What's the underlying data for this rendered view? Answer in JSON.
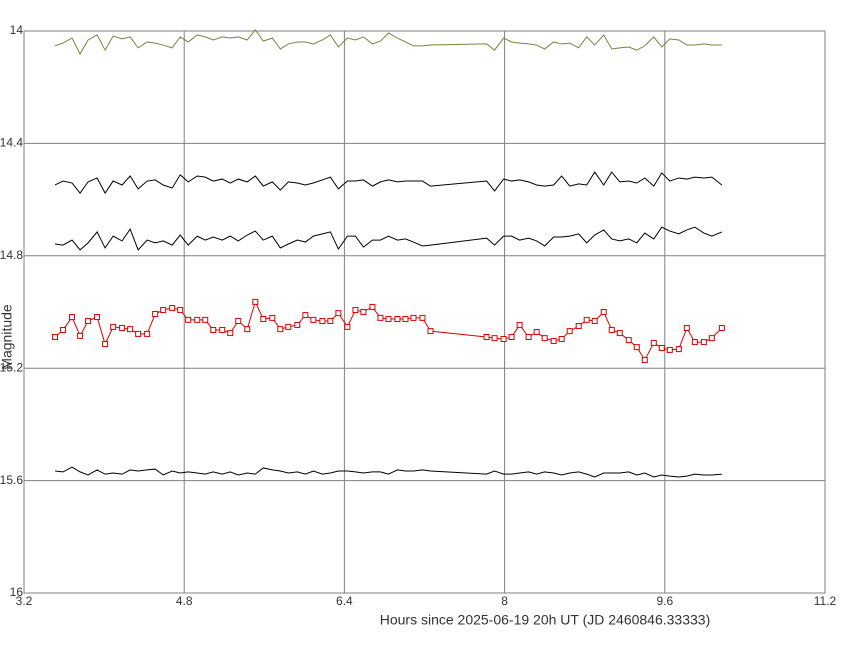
{
  "chart_data": {
    "type": "line",
    "xlabel": "Hours since 2025-06-19 20h UT (JD 2460846.33333)",
    "ylabel": "Magnitude",
    "xlim": [
      3.2,
      11.2
    ],
    "xticks": [
      3.2,
      4.8,
      6.4,
      8,
      9.6,
      11.2
    ],
    "ylim": [
      14,
      16
    ],
    "yticks": [
      14,
      14.4,
      14.8,
      15.2,
      15.6,
      16
    ],
    "invert_y": true,
    "grid": true,
    "x": [
      3.51,
      3.59,
      3.68,
      3.76,
      3.84,
      3.93,
      4.01,
      4.09,
      4.18,
      4.26,
      4.34,
      4.43,
      4.51,
      4.59,
      4.68,
      4.76,
      4.84,
      4.93,
      5.01,
      5.09,
      5.18,
      5.26,
      5.34,
      5.43,
      5.51,
      5.59,
      5.68,
      5.76,
      5.84,
      5.93,
      6.01,
      6.09,
      6.18,
      6.26,
      6.34,
      6.43,
      6.51,
      6.59,
      6.68,
      6.76,
      6.84,
      6.93,
      7.01,
      7.09,
      7.18,
      7.26,
      7.82,
      7.9,
      7.99,
      8.07,
      8.15,
      8.24,
      8.32,
      8.4,
      8.49,
      8.57,
      8.65,
      8.74,
      8.82,
      8.9,
      8.99,
      9.07,
      9.15,
      9.24,
      9.32,
      9.4,
      9.49,
      9.57,
      9.65,
      9.74,
      9.82,
      9.9,
      9.99,
      10.07,
      10.17
    ],
    "series": [
      {
        "color": "#808040",
        "values": [
          14.053,
          14.043,
          14.025,
          14.082,
          14.032,
          14.014,
          14.068,
          14.018,
          14.028,
          14.021,
          14.06,
          14.039,
          14.043,
          14.05,
          14.06,
          14.021,
          14.039,
          14.014,
          14.021,
          14.032,
          14.021,
          14.025,
          14.021,
          14.032,
          13.996,
          14.036,
          14.025,
          14.064,
          14.046,
          14.039,
          14.039,
          14.046,
          14.032,
          14.014,
          14.057,
          14.025,
          14.032,
          14.021,
          14.046,
          14.036,
          14.007,
          14.025,
          14.039,
          14.053,
          14.053,
          14.05,
          14.046,
          14.068,
          14.025,
          14.039,
          14.043,
          14.046,
          14.05,
          14.064,
          14.039,
          14.046,
          14.043,
          14.06,
          14.021,
          14.05,
          14.014,
          14.064,
          14.06,
          14.057,
          14.068,
          14.053,
          14.021,
          14.057,
          14.028,
          14.032,
          14.05,
          14.05,
          14.046,
          14.05,
          14.05
        ]
      },
      {
        "color": "#000000",
        "values": [
          14.548,
          14.534,
          14.541,
          14.577,
          14.537,
          14.523,
          14.577,
          14.534,
          14.548,
          14.516,
          14.562,
          14.534,
          14.53,
          14.548,
          14.559,
          14.512,
          14.537,
          14.516,
          14.52,
          14.534,
          14.527,
          14.541,
          14.527,
          14.537,
          14.516,
          14.552,
          14.537,
          14.566,
          14.537,
          14.541,
          14.548,
          14.541,
          14.53,
          14.52,
          14.562,
          14.534,
          14.534,
          14.53,
          14.552,
          14.537,
          14.53,
          14.537,
          14.534,
          14.534,
          14.534,
          14.552,
          14.534,
          14.569,
          14.527,
          14.534,
          14.53,
          14.537,
          14.548,
          14.552,
          14.548,
          14.516,
          14.552,
          14.544,
          14.548,
          14.502,
          14.548,
          14.502,
          14.537,
          14.534,
          14.541,
          14.523,
          14.552,
          14.505,
          14.534,
          14.523,
          14.527,
          14.52,
          14.523,
          14.52,
          14.548
        ]
      },
      {
        "color": "#000000",
        "values": [
          14.758,
          14.762,
          14.744,
          14.779,
          14.754,
          14.715,
          14.772,
          14.73,
          14.747,
          14.705,
          14.779,
          14.744,
          14.754,
          14.747,
          14.762,
          14.726,
          14.762,
          14.73,
          14.744,
          14.733,
          14.744,
          14.73,
          14.747,
          14.726,
          14.712,
          14.744,
          14.73,
          14.772,
          14.758,
          14.744,
          14.751,
          14.73,
          14.722,
          14.715,
          14.776,
          14.73,
          14.73,
          14.769,
          14.744,
          14.744,
          14.73,
          14.744,
          14.74,
          14.751,
          14.765,
          14.762,
          14.737,
          14.762,
          14.73,
          14.73,
          14.744,
          14.737,
          14.747,
          14.765,
          14.733,
          14.733,
          14.73,
          14.722,
          14.754,
          14.726,
          14.708,
          14.74,
          14.747,
          14.74,
          14.754,
          14.719,
          14.74,
          14.698,
          14.712,
          14.722,
          14.708,
          14.698,
          14.719,
          14.73,
          14.715
        ]
      },
      {
        "color": "#e00000",
        "marker": "square",
        "values": [
          15.089,
          15.064,
          15.018,
          15.085,
          15.032,
          15.018,
          15.114,
          15.053,
          15.057,
          15.061,
          15.078,
          15.078,
          15.007,
          14.993,
          14.986,
          14.993,
          15.028,
          15.028,
          15.028,
          15.064,
          15.064,
          15.075,
          15.032,
          15.061,
          14.964,
          15.025,
          15.021,
          15.061,
          15.053,
          15.046,
          15.011,
          15.028,
          15.032,
          15.032,
          15.004,
          15.053,
          14.993,
          15.0,
          14.982,
          15.021,
          15.025,
          15.025,
          15.025,
          15.021,
          15.021,
          15.068,
          15.089,
          15.093,
          15.096,
          15.089,
          15.046,
          15.089,
          15.071,
          15.093,
          15.103,
          15.096,
          15.068,
          15.05,
          15.028,
          15.032,
          15.0,
          15.064,
          15.075,
          15.1,
          15.125,
          15.171,
          15.11,
          15.128,
          15.135,
          15.132,
          15.057,
          15.107,
          15.107,
          15.093,
          15.057
        ]
      },
      {
        "color": "#000000",
        "values": [
          15.566,
          15.569,
          15.552,
          15.569,
          15.58,
          15.562,
          15.577,
          15.573,
          15.577,
          15.562,
          15.566,
          15.562,
          15.559,
          15.58,
          15.566,
          15.573,
          15.569,
          15.573,
          15.577,
          15.569,
          15.577,
          15.569,
          15.58,
          15.573,
          15.577,
          15.555,
          15.562,
          15.566,
          15.573,
          15.569,
          15.577,
          15.566,
          15.577,
          15.573,
          15.566,
          15.566,
          15.569,
          15.573,
          15.569,
          15.569,
          15.577,
          15.562,
          15.566,
          15.566,
          15.562,
          15.566,
          15.577,
          15.566,
          15.577,
          15.577,
          15.573,
          15.569,
          15.577,
          15.569,
          15.573,
          15.58,
          15.573,
          15.569,
          15.577,
          15.587,
          15.573,
          15.573,
          15.573,
          15.569,
          15.58,
          15.573,
          15.587,
          15.58,
          15.584,
          15.587,
          15.584,
          15.577,
          15.58,
          15.58,
          15.577
        ]
      }
    ]
  }
}
